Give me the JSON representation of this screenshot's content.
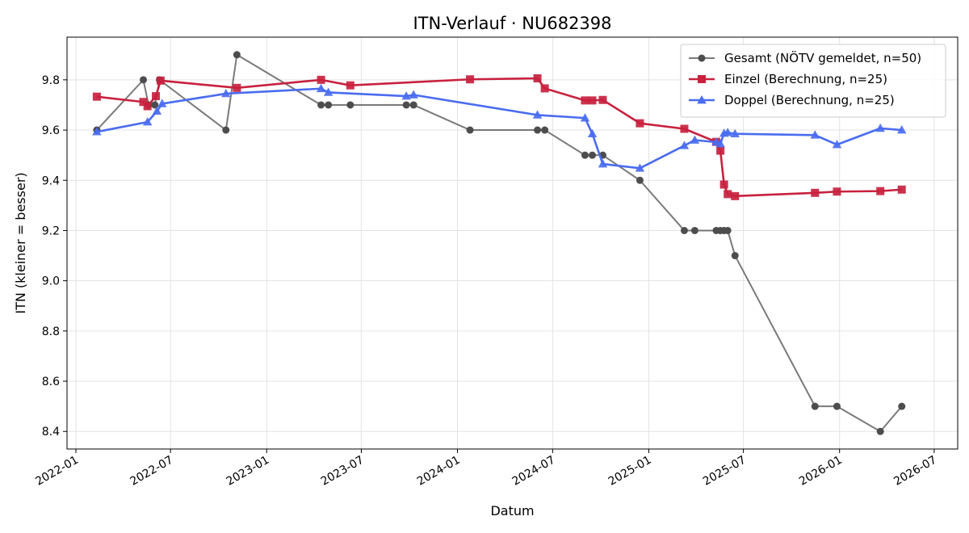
{
  "chart_data": {
    "type": "line",
    "title": "ITN-Verlauf · NU682398",
    "xlabel": "Datum",
    "ylabel": "ITN  (kleiner = besser)",
    "xlim": [
      "2021-12-15",
      "2026-08-15"
    ],
    "ylim": [
      8.33,
      9.97
    ],
    "grid": true,
    "legend_position": "top-right",
    "x_ticks": [
      "2022-01",
      "2022-07",
      "2023-01",
      "2023-07",
      "2024-01",
      "2024-07",
      "2025-01",
      "2025-07",
      "2026-01",
      "2026-07"
    ],
    "y_ticks": [
      8.4,
      8.6,
      8.8,
      9.0,
      9.2,
      9.4,
      9.6,
      9.8
    ],
    "series": [
      {
        "name": "Gesamt (NÖTV gemeldet, n=50)",
        "color": "#4d4d4d",
        "marker": "circle",
        "points": [
          {
            "x": "2022-02-10",
            "y": 9.6
          },
          {
            "x": "2022-05-10",
            "y": 9.8
          },
          {
            "x": "2022-05-20",
            "y": 9.7
          },
          {
            "x": "2022-06-01",
            "y": 9.7
          },
          {
            "x": "2022-06-10",
            "y": 9.8
          },
          {
            "x": "2022-10-15",
            "y": 9.6
          },
          {
            "x": "2022-11-05",
            "y": 9.9
          },
          {
            "x": "2023-04-15",
            "y": 9.7
          },
          {
            "x": "2023-04-29",
            "y": 9.7
          },
          {
            "x": "2023-06-10",
            "y": 9.7
          },
          {
            "x": "2023-09-25",
            "y": 9.7
          },
          {
            "x": "2023-10-09",
            "y": 9.7
          },
          {
            "x": "2024-01-25",
            "y": 9.6
          },
          {
            "x": "2024-06-02",
            "y": 9.6
          },
          {
            "x": "2024-06-16",
            "y": 9.6
          },
          {
            "x": "2024-09-01",
            "y": 9.5
          },
          {
            "x": "2024-09-15",
            "y": 9.5
          },
          {
            "x": "2024-10-05",
            "y": 9.5
          },
          {
            "x": "2024-12-15",
            "y": 9.4
          },
          {
            "x": "2025-03-10",
            "y": 9.2
          },
          {
            "x": "2025-03-30",
            "y": 9.2
          },
          {
            "x": "2025-05-10",
            "y": 9.2
          },
          {
            "x": "2025-05-18",
            "y": 9.2
          },
          {
            "x": "2025-05-25",
            "y": 9.2
          },
          {
            "x": "2025-06-01",
            "y": 9.2
          },
          {
            "x": "2025-06-15",
            "y": 9.1
          },
          {
            "x": "2025-11-15",
            "y": 8.5
          },
          {
            "x": "2025-12-27",
            "y": 8.5
          },
          {
            "x": "2026-03-20",
            "y": 8.4
          },
          {
            "x": "2026-04-30",
            "y": 8.5
          }
        ]
      },
      {
        "name": "Einzel (Berechnung, n=25)",
        "color": "#c8213e",
        "marker": "square",
        "points": [
          {
            "x": "2022-02-10",
            "y": 9.733
          },
          {
            "x": "2022-05-10",
            "y": 9.712
          },
          {
            "x": "2022-05-18",
            "y": 9.695
          },
          {
            "x": "2022-06-03",
            "y": 9.735
          },
          {
            "x": "2022-06-12",
            "y": 9.797
          },
          {
            "x": "2022-11-05",
            "y": 9.768
          },
          {
            "x": "2023-04-15",
            "y": 9.8
          },
          {
            "x": "2023-06-10",
            "y": 9.778
          },
          {
            "x": "2024-01-25",
            "y": 9.802
          },
          {
            "x": "2024-06-02",
            "y": 9.806
          },
          {
            "x": "2024-06-16",
            "y": 9.766
          },
          {
            "x": "2024-09-01",
            "y": 9.718
          },
          {
            "x": "2024-09-15",
            "y": 9.718
          },
          {
            "x": "2024-10-05",
            "y": 9.72
          },
          {
            "x": "2024-12-15",
            "y": 9.627
          },
          {
            "x": "2025-03-10",
            "y": 9.605
          },
          {
            "x": "2025-05-10",
            "y": 9.553
          },
          {
            "x": "2025-05-18",
            "y": 9.518
          },
          {
            "x": "2025-05-25",
            "y": 9.383
          },
          {
            "x": "2025-06-01",
            "y": 9.345
          },
          {
            "x": "2025-06-15",
            "y": 9.337
          },
          {
            "x": "2025-11-15",
            "y": 9.35
          },
          {
            "x": "2025-12-27",
            "y": 9.355
          },
          {
            "x": "2026-03-20",
            "y": 9.357
          },
          {
            "x": "2026-04-30",
            "y": 9.363
          }
        ]
      },
      {
        "name": "Doppel (Berechnung, n=25)",
        "color": "#4a6cf0",
        "marker": "triangle",
        "points": [
          {
            "x": "2022-02-10",
            "y": 9.593
          },
          {
            "x": "2022-05-18",
            "y": 9.632
          },
          {
            "x": "2022-06-05",
            "y": 9.675
          },
          {
            "x": "2022-06-15",
            "y": 9.705
          },
          {
            "x": "2022-10-15",
            "y": 9.745
          },
          {
            "x": "2023-04-15",
            "y": 9.765
          },
          {
            "x": "2023-04-29",
            "y": 9.75
          },
          {
            "x": "2023-09-25",
            "y": 9.735
          },
          {
            "x": "2023-10-09",
            "y": 9.74
          },
          {
            "x": "2024-06-02",
            "y": 9.66
          },
          {
            "x": "2024-09-01",
            "y": 9.648
          },
          {
            "x": "2024-09-15",
            "y": 9.585
          },
          {
            "x": "2024-10-05",
            "y": 9.465
          },
          {
            "x": "2024-12-15",
            "y": 9.448
          },
          {
            "x": "2025-03-10",
            "y": 9.538
          },
          {
            "x": "2025-03-30",
            "y": 9.56
          },
          {
            "x": "2025-05-10",
            "y": 9.552
          },
          {
            "x": "2025-05-18",
            "y": 9.545
          },
          {
            "x": "2025-05-25",
            "y": 9.587
          },
          {
            "x": "2025-06-01",
            "y": 9.59
          },
          {
            "x": "2025-06-15",
            "y": 9.585
          },
          {
            "x": "2025-11-15",
            "y": 9.58
          },
          {
            "x": "2025-12-27",
            "y": 9.542
          },
          {
            "x": "2026-03-20",
            "y": 9.607
          },
          {
            "x": "2026-04-30",
            "y": 9.6
          }
        ]
      }
    ]
  }
}
